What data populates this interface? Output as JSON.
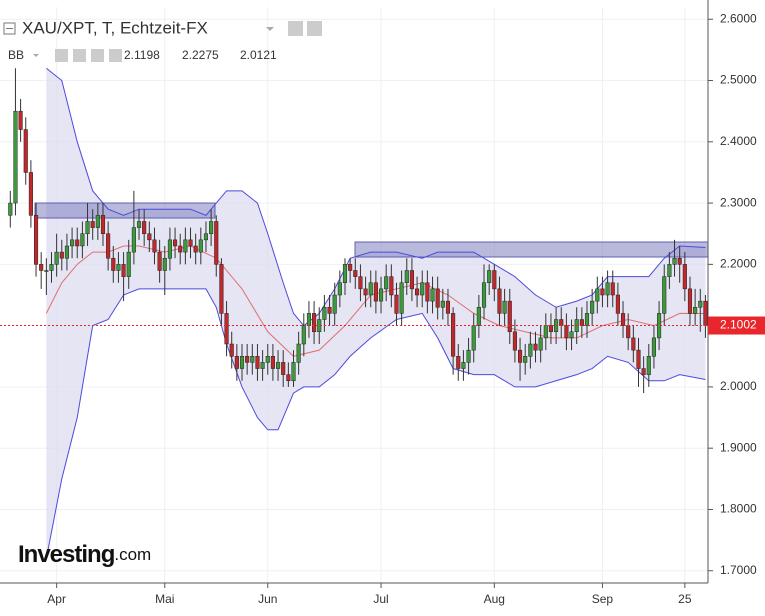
{
  "chart_data": {
    "type": "candlestick",
    "title": "XAU/XPT, T, Echtzeit-FX",
    "indicator": {
      "name": "BB",
      "values": [
        2.1198,
        2.2275,
        2.0121
      ],
      "colors": [
        "#c0282b",
        "#3a3acc",
        "#3a3acc"
      ]
    },
    "logo": "Investing",
    "logo_suffix": ".com",
    "up_color": "#3c9a3c",
    "down_color": "#c0282b",
    "price_color": "#e8262b",
    "ylim": [
      1.68,
      2.62
    ],
    "yticks": [
      {
        "value": 1.7,
        "label": "1.7000"
      },
      {
        "value": 1.8,
        "label": "1.8000"
      },
      {
        "value": 1.9,
        "label": "1.9000"
      },
      {
        "value": 2.0,
        "label": "2.0000"
      },
      {
        "value": 2.1,
        "label": "2.1000"
      },
      {
        "value": 2.2,
        "label": "2.2000"
      },
      {
        "value": 2.3,
        "label": "2.3000"
      },
      {
        "value": 2.4,
        "label": "2.4000"
      },
      {
        "value": 2.5,
        "label": "2.5000"
      },
      {
        "value": 2.6,
        "label": "2.6000"
      }
    ],
    "xlim": [
      -2,
      135.5
    ],
    "xticks": [
      {
        "value": 9,
        "label": "Apr"
      },
      {
        "value": 30,
        "label": "Mai"
      },
      {
        "value": 50,
        "label": "Jun"
      },
      {
        "value": 72,
        "label": "Jul"
      },
      {
        "value": 94,
        "label": "Aug"
      },
      {
        "value": 115,
        "label": "Sep"
      },
      {
        "value": 131,
        "label": "25"
      }
    ],
    "grid": true,
    "candles": {
      "open": [
        2.28,
        2.3,
        2.45,
        2.42,
        2.35,
        2.28,
        2.2,
        2.19,
        2.19,
        2.2,
        2.22,
        2.21,
        2.23,
        2.24,
        2.23,
        2.25,
        2.27,
        2.26,
        2.28,
        2.25,
        2.21,
        2.19,
        2.2,
        2.18,
        2.22,
        2.26,
        2.27,
        2.25,
        2.24,
        2.22,
        2.19,
        2.21,
        2.24,
        2.23,
        2.22,
        2.24,
        2.23,
        2.22,
        2.24,
        2.25,
        2.27,
        2.2,
        2.12,
        2.07,
        2.05,
        2.03,
        2.05,
        2.04,
        2.05,
        2.03,
        2.04,
        2.05,
        2.03,
        2.04,
        2.02,
        2.01,
        2.04,
        2.07,
        2.1,
        2.12,
        2.09,
        2.11,
        2.13,
        2.12,
        2.15,
        2.17,
        2.2,
        2.19,
        2.18,
        2.16,
        2.15,
        2.17,
        2.14,
        2.16,
        2.18,
        2.15,
        2.12,
        2.17,
        2.19,
        2.16,
        2.15,
        2.17,
        2.14,
        2.16,
        2.13,
        2.14,
        2.12,
        2.05,
        2.03,
        2.04,
        2.06,
        2.1,
        2.13,
        2.17,
        2.19,
        2.16,
        2.12,
        2.14,
        2.09,
        2.06,
        2.04,
        2.05,
        2.07,
        2.06,
        2.08,
        2.1,
        2.09,
        2.11,
        2.1,
        2.08,
        2.09,
        2.11,
        2.1,
        2.12,
        2.14,
        2.16,
        2.15,
        2.17,
        2.15,
        2.12,
        2.1,
        2.08,
        2.06,
        2.03,
        2.02,
        2.05,
        2.08,
        2.12,
        2.18,
        2.2,
        2.21,
        2.2,
        2.16,
        2.12,
        2.13,
        2.14
      ],
      "high": [
        2.32,
        2.52,
        2.47,
        2.44,
        2.37,
        2.3,
        2.22,
        2.21,
        2.22,
        2.25,
        2.24,
        2.25,
        2.26,
        2.26,
        2.27,
        2.3,
        2.29,
        2.3,
        2.3,
        2.27,
        2.23,
        2.22,
        2.22,
        2.24,
        2.32,
        2.29,
        2.29,
        2.27,
        2.26,
        2.24,
        2.23,
        2.26,
        2.26,
        2.25,
        2.26,
        2.26,
        2.25,
        2.26,
        2.27,
        2.29,
        2.28,
        2.21,
        2.14,
        2.09,
        2.07,
        2.07,
        2.07,
        2.07,
        2.07,
        2.06,
        2.07,
        2.07,
        2.06,
        2.06,
        2.04,
        2.06,
        2.09,
        2.12,
        2.14,
        2.14,
        2.13,
        2.15,
        2.15,
        2.17,
        2.19,
        2.21,
        2.21,
        2.21,
        2.2,
        2.18,
        2.19,
        2.19,
        2.18,
        2.2,
        2.2,
        2.17,
        2.19,
        2.21,
        2.21,
        2.18,
        2.19,
        2.19,
        2.18,
        2.18,
        2.16,
        2.16,
        2.13,
        2.07,
        2.06,
        2.08,
        2.12,
        2.15,
        2.2,
        2.2,
        2.2,
        2.18,
        2.16,
        2.16,
        2.11,
        2.08,
        2.07,
        2.09,
        2.09,
        2.1,
        2.12,
        2.12,
        2.13,
        2.13,
        2.12,
        2.11,
        2.13,
        2.13,
        2.14,
        2.16,
        2.18,
        2.18,
        2.19,
        2.19,
        2.17,
        2.14,
        2.12,
        2.1,
        2.08,
        2.05,
        2.07,
        2.1,
        2.14,
        2.2,
        2.22,
        2.24,
        2.23,
        2.22,
        2.18,
        2.16,
        2.16,
        2.15
      ],
      "low": [
        2.26,
        2.28,
        2.4,
        2.33,
        2.26,
        2.18,
        2.16,
        2.15,
        2.17,
        2.18,
        2.19,
        2.19,
        2.21,
        2.21,
        2.21,
        2.23,
        2.24,
        2.24,
        2.23,
        2.19,
        2.17,
        2.17,
        2.14,
        2.16,
        2.2,
        2.24,
        2.23,
        2.22,
        2.2,
        2.17,
        2.15,
        2.19,
        2.21,
        2.2,
        2.2,
        2.21,
        2.2,
        2.2,
        2.22,
        2.23,
        2.18,
        2.1,
        2.05,
        2.03,
        2.01,
        2.01,
        2.02,
        2.02,
        2.01,
        2.01,
        2.02,
        2.01,
        2.01,
        2.0,
        2.0,
        2.0,
        2.02,
        2.05,
        2.08,
        2.07,
        2.07,
        2.09,
        2.1,
        2.1,
        2.13,
        2.15,
        2.17,
        2.16,
        2.14,
        2.13,
        2.13,
        2.12,
        2.12,
        2.14,
        2.13,
        2.1,
        2.1,
        2.15,
        2.14,
        2.13,
        2.13,
        2.12,
        2.12,
        2.11,
        2.11,
        2.1,
        2.02,
        2.01,
        2.01,
        2.02,
        2.04,
        2.08,
        2.11,
        2.15,
        2.14,
        2.1,
        2.1,
        2.07,
        2.04,
        2.01,
        2.02,
        2.03,
        2.04,
        2.04,
        2.06,
        2.07,
        2.07,
        2.08,
        2.06,
        2.06,
        2.07,
        2.08,
        2.08,
        2.1,
        2.12,
        2.13,
        2.13,
        2.13,
        2.1,
        2.08,
        2.06,
        2.04,
        2.0,
        1.99,
        2.0,
        2.03,
        2.06,
        2.1,
        2.16,
        2.18,
        2.17,
        2.14,
        2.1,
        2.1,
        2.09,
        2.08
      ],
      "close": [
        2.3,
        2.45,
        2.42,
        2.35,
        2.28,
        2.2,
        2.19,
        2.19,
        2.2,
        2.22,
        2.21,
        2.23,
        2.24,
        2.23,
        2.25,
        2.27,
        2.26,
        2.28,
        2.25,
        2.21,
        2.19,
        2.2,
        2.18,
        2.22,
        2.26,
        2.27,
        2.25,
        2.24,
        2.22,
        2.19,
        2.21,
        2.24,
        2.23,
        2.22,
        2.24,
        2.23,
        2.22,
        2.24,
        2.25,
        2.27,
        2.2,
        2.12,
        2.07,
        2.05,
        2.03,
        2.05,
        2.04,
        2.05,
        2.03,
        2.04,
        2.05,
        2.03,
        2.04,
        2.02,
        2.01,
        2.04,
        2.07,
        2.1,
        2.12,
        2.09,
        2.11,
        2.13,
        2.12,
        2.15,
        2.17,
        2.2,
        2.19,
        2.18,
        2.16,
        2.15,
        2.17,
        2.14,
        2.16,
        2.18,
        2.15,
        2.12,
        2.17,
        2.19,
        2.16,
        2.15,
        2.17,
        2.14,
        2.16,
        2.13,
        2.14,
        2.12,
        2.05,
        2.03,
        2.04,
        2.06,
        2.1,
        2.13,
        2.17,
        2.19,
        2.16,
        2.12,
        2.14,
        2.09,
        2.06,
        2.04,
        2.05,
        2.07,
        2.06,
        2.08,
        2.1,
        2.09,
        2.11,
        2.1,
        2.08,
        2.09,
        2.11,
        2.1,
        2.12,
        2.14,
        2.16,
        2.15,
        2.17,
        2.15,
        2.12,
        2.1,
        2.08,
        2.06,
        2.03,
        2.02,
        2.05,
        2.08,
        2.12,
        2.18,
        2.2,
        2.21,
        2.2,
        2.16,
        2.12,
        2.13,
        2.14,
        2.1002
      ]
    },
    "bands": [
      {
        "color": "#4b4bdc",
        "x": [
          7,
          10,
          13,
          16,
          19,
          22,
          25,
          30,
          35,
          38,
          40,
          42,
          45,
          48,
          50,
          53,
          55,
          57,
          60,
          63,
          66,
          70,
          75,
          80,
          83,
          86,
          90,
          94,
          98,
          102,
          106,
          110,
          113,
          116,
          120,
          124,
          127,
          130,
          135
        ],
        "values": [
          2.52,
          2.5,
          2.4,
          2.32,
          2.29,
          2.28,
          2.29,
          2.29,
          2.29,
          2.28,
          2.3,
          2.32,
          2.32,
          2.3,
          2.25,
          2.17,
          2.12,
          2.1,
          2.12,
          2.16,
          2.21,
          2.22,
          2.22,
          2.21,
          2.22,
          2.22,
          2.22,
          2.2,
          2.18,
          2.15,
          2.13,
          2.14,
          2.15,
          2.18,
          2.18,
          2.18,
          2.21,
          2.23,
          2.2275
        ]
      },
      {
        "color": "#4b4bdc",
        "x": [
          7,
          10,
          13,
          16,
          19,
          22,
          25,
          30,
          35,
          38,
          40,
          42,
          45,
          48,
          50,
          52,
          55,
          57,
          60,
          63,
          66,
          70,
          75,
          80,
          83,
          86,
          90,
          94,
          98,
          102,
          106,
          110,
          113,
          116,
          120,
          124,
          127,
          130,
          135
        ],
        "values": [
          1.72,
          1.85,
          1.95,
          2.1,
          2.11,
          2.15,
          2.16,
          2.16,
          2.16,
          2.16,
          2.13,
          2.07,
          2.0,
          1.95,
          1.93,
          1.93,
          1.99,
          2.0,
          2.0,
          2.02,
          2.05,
          2.08,
          2.11,
          2.12,
          2.08,
          2.03,
          2.02,
          2.02,
          2.0,
          2.0,
          2.01,
          2.02,
          2.03,
          2.05,
          2.04,
          2.01,
          2.01,
          2.02,
          2.0121
        ]
      },
      {
        "color": "#e07070",
        "x": [
          7,
          10,
          13,
          16,
          19,
          22,
          25,
          30,
          35,
          40,
          45,
          50,
          55,
          60,
          65,
          70,
          75,
          80,
          85,
          90,
          95,
          100,
          105,
          110,
          115,
          120,
          125,
          130,
          135
        ],
        "values": [
          2.12,
          2.17,
          2.2,
          2.22,
          2.22,
          2.23,
          2.23,
          2.22,
          2.23,
          2.21,
          2.16,
          2.09,
          2.05,
          2.06,
          2.1,
          2.15,
          2.16,
          2.17,
          2.15,
          2.12,
          2.1,
          2.09,
          2.08,
          2.08,
          2.1,
          2.11,
          2.1,
          2.12,
          2.1198
        ]
      }
    ]
  }
}
